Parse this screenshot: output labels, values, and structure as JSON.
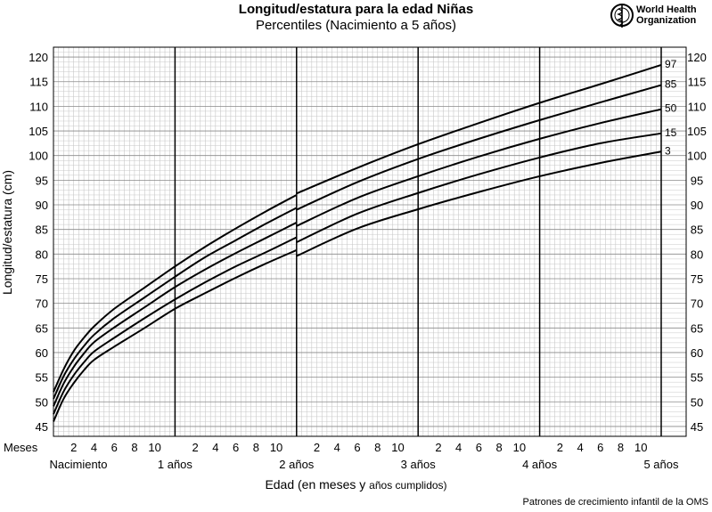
{
  "header": {
    "title": "Longitud/estatura para la edad Niñas",
    "subtitle": "Percentiles (Nacimiento a 5 años)",
    "logo_line1": "World Health",
    "logo_line2": "Organization"
  },
  "footer": {
    "source": "Patrones de crecimiento infantil de la OMS"
  },
  "chart_data": {
    "type": "line",
    "ylabel": "Longitud/estatura (cm)",
    "xlabel_main": "Edad (en meses y",
    "xlabel_small": "años cumplidos)",
    "xlim": [
      0,
      60
    ],
    "ylim": [
      43,
      122
    ],
    "yticks": [
      45,
      50,
      55,
      60,
      65,
      70,
      75,
      80,
      85,
      90,
      95,
      100,
      105,
      110,
      115,
      120
    ],
    "month_row_label": "Meses",
    "month_ticks": [
      2,
      4,
      6,
      8,
      10
    ],
    "year_labels": [
      "Nacimiento",
      "1 años",
      "2 años",
      "3 años",
      "4 años",
      "5 años"
    ],
    "year_lines": [
      12,
      24,
      36,
      48
    ],
    "grid": true,
    "x": [
      0,
      1,
      2,
      3,
      4,
      6,
      9,
      12,
      15,
      18,
      21,
      24,
      30,
      36,
      42,
      48,
      54,
      60
    ],
    "series": [
      {
        "name": "97",
        "values": [
          52.0,
          56.6,
          60.3,
          63.0,
          65.3,
          68.9,
          73.2,
          77.5,
          81.5,
          85.2,
          88.7,
          92.0,
          97.5,
          102.3,
          106.6,
          110.7,
          114.5,
          118.4
        ]
      },
      {
        "name": "85",
        "values": [
          50.6,
          55.2,
          58.6,
          61.3,
          63.6,
          67.0,
          71.2,
          75.4,
          79.4,
          82.8,
          86.2,
          89.4,
          94.6,
          99.3,
          103.4,
          107.2,
          110.8,
          114.3
        ]
      },
      {
        "name": "50",
        "values": [
          49.1,
          53.7,
          57.1,
          59.8,
          62.1,
          65.1,
          69.2,
          73.3,
          76.9,
          80.2,
          83.3,
          86.4,
          91.4,
          95.8,
          99.8,
          103.4,
          106.6,
          109.4
        ]
      },
      {
        "name": "15",
        "values": [
          47.5,
          52.1,
          55.4,
          58.0,
          60.2,
          63.0,
          67.0,
          70.8,
          74.3,
          77.5,
          80.4,
          83.4,
          88.2,
          92.4,
          96.2,
          99.6,
          102.5,
          104.5
        ]
      },
      {
        "name": "3",
        "values": [
          46.0,
          50.6,
          53.8,
          56.4,
          58.5,
          61.2,
          65.0,
          68.9,
          72.1,
          75.2,
          78.1,
          80.8,
          85.2,
          89.1,
          92.6,
          95.8,
          98.5,
          100.8
        ]
      }
    ],
    "series_after_24": [
      {
        "name": "97",
        "start": 92.3
      },
      {
        "name": "85",
        "start": 89.0
      },
      {
        "name": "50",
        "start": 85.7
      },
      {
        "name": "15",
        "start": 82.4
      },
      {
        "name": "3",
        "start": 79.6
      }
    ]
  }
}
